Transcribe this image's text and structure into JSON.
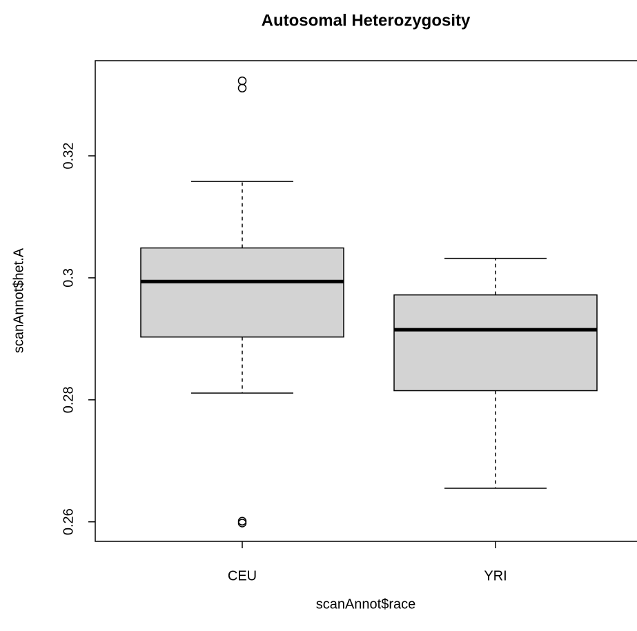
{
  "chart_data": {
    "type": "boxplot",
    "title": "Autosomal Heterozygosity",
    "x_label": "scanAnnot$race",
    "y_label": "scanAnnot$het.A",
    "categories": [
      "CEU",
      "YRI"
    ],
    "boxes": [
      {
        "whislo": 0.2811,
        "q1": 0.2903,
        "median": 0.2994,
        "q3": 0.3049,
        "whishi": 0.3158,
        "fliers": [
          0.3323,
          0.3311,
          0.2601,
          0.2598
        ]
      },
      {
        "whislo": 0.2655,
        "q1": 0.2815,
        "median": 0.2915,
        "q3": 0.2972,
        "whishi": 0.3032,
        "fliers": []
      }
    ],
    "color": "#d3d3d3",
    "ylim": [
      0.2568,
      0.3356
    ],
    "yticks": [
      0.26,
      0.28,
      0.3,
      0.32
    ]
  }
}
